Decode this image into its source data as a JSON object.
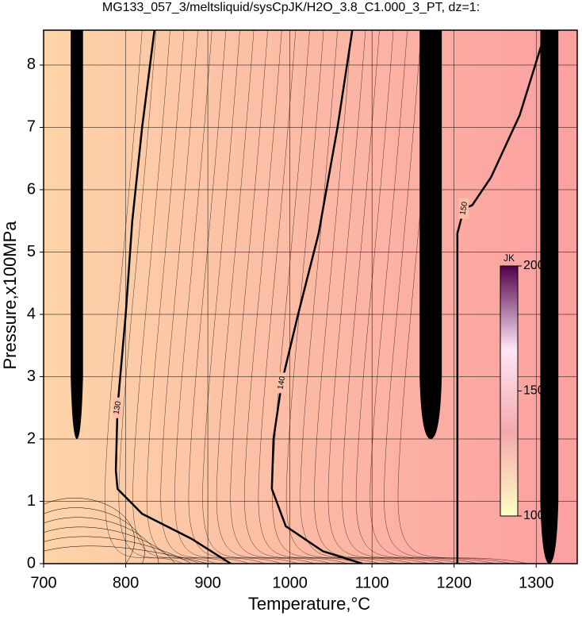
{
  "chart_data": {
    "type": "contour",
    "title": "MG133_057_3/meltsliquid/sysCpJK/H2O_3.8_C1.000_3_PT, dz=1:",
    "x_label": "Temperature,°C",
    "y_label": "Pressure,x100MPa",
    "xlim": [
      700,
      1350
    ],
    "ylim": [
      0,
      8.56
    ],
    "xticks": [
      700,
      800,
      900,
      1000,
      1100,
      1200,
      1300
    ],
    "yticks": [
      0,
      1,
      2,
      3,
      4,
      5,
      6,
      7,
      8
    ],
    "grid": true,
    "background_colors": [
      "#fdd4a8",
      "#fc9fa1"
    ],
    "contours": [
      {
        "level": 130,
        "x": [
          835,
          820,
          808,
          800,
          790,
          788,
          790,
          820,
          880,
          928
        ],
        "y": [
          8.56,
          7,
          5.5,
          4,
          2.5,
          1.5,
          1.2,
          0.8,
          0.4,
          0
        ]
      },
      {
        "level": 140,
        "x": [
          1076,
          1058,
          1035,
          1010,
          990,
          980,
          978,
          995,
          1040,
          1088
        ],
        "y": [
          8.56,
          7,
          5.3,
          4,
          2.9,
          2,
          1.2,
          0.6,
          0.2,
          0
        ]
      },
      {
        "level": 150,
        "x": [
          1204,
          1204,
          1204,
          1212,
          1222,
          1245,
          1280,
          1312
        ],
        "y": [
          0,
          3,
          5.3,
          5.7,
          5.75,
          6.2,
          7.2,
          8.56
        ]
      }
    ],
    "colorbar": {
      "label": "JK",
      "lim": [
        100,
        200
      ],
      "ticks": [
        100,
        150,
        200
      ],
      "colors": [
        "#ffffc4",
        "#f4a9ac",
        "#ffe6f6",
        "#500048"
      ]
    }
  }
}
